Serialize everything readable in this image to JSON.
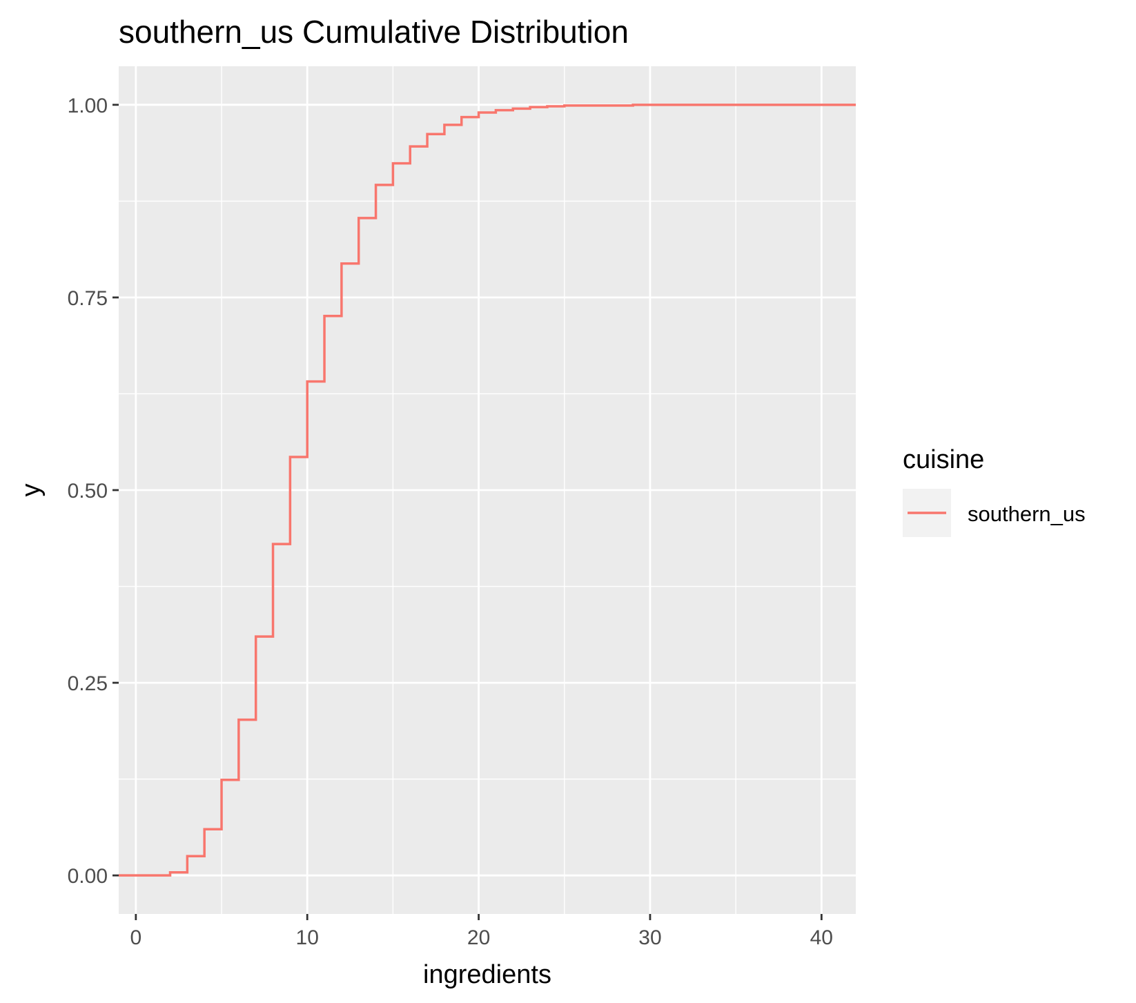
{
  "chart_data": {
    "type": "line",
    "title": "southern_us Cumulative Distribution",
    "xlabel": "ingredients",
    "ylabel": "y",
    "xlim": [
      -1,
      42
    ],
    "ylim": [
      -0.05,
      1.05
    ],
    "x_ticks": [
      0,
      10,
      20,
      30,
      40
    ],
    "x_tick_labels": [
      "0",
      "10",
      "20",
      "30",
      "40"
    ],
    "y_ticks": [
      0,
      0.25,
      0.5,
      0.75,
      1.0
    ],
    "y_tick_labels": [
      "0.00",
      "0.25",
      "0.50",
      "0.75",
      "1.00"
    ],
    "grid": true,
    "legend": {
      "title": "cuisine",
      "position": "right"
    },
    "series": [
      {
        "name": "southern_us",
        "color": "#F8766D",
        "step": "hv",
        "x": [
          -1,
          2,
          3,
          4,
          5,
          6,
          7,
          8,
          9,
          10,
          11,
          12,
          13,
          14,
          15,
          16,
          17,
          18,
          19,
          20,
          21,
          22,
          23,
          24,
          25,
          29,
          42
        ],
        "y": [
          0.0,
          0.004,
          0.025,
          0.06,
          0.124,
          0.202,
          0.31,
          0.43,
          0.543,
          0.641,
          0.726,
          0.794,
          0.853,
          0.896,
          0.924,
          0.946,
          0.962,
          0.974,
          0.984,
          0.99,
          0.993,
          0.995,
          0.997,
          0.998,
          0.999,
          1.0,
          1.0
        ]
      }
    ]
  }
}
